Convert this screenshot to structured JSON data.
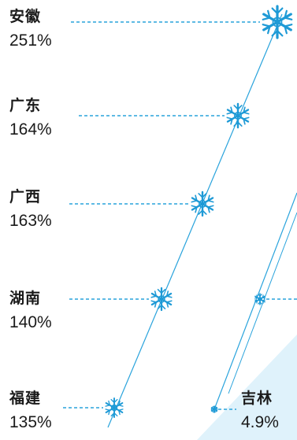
{
  "chart_data": {
    "type": "line",
    "unit": "%",
    "series": [
      {
        "points": [
          {
            "label": "福建",
            "value": 135,
            "display": "135%"
          },
          {
            "label": "湖南",
            "value": 140,
            "display": "140%"
          },
          {
            "label": "广西",
            "value": 163,
            "display": "163%"
          },
          {
            "label": "广东",
            "value": 164,
            "display": "164%"
          },
          {
            "label": "安徽",
            "value": 251,
            "display": "251%"
          }
        ]
      },
      {
        "points": [
          {
            "label": "吉林",
            "value": 4.9,
            "display": "4.9%"
          }
        ]
      }
    ],
    "colors": {
      "line": "#29a3dc",
      "marker": "#1e9ad6",
      "background_accent": "#dff2fb"
    },
    "marker_icon": "snowflake-icon"
  }
}
